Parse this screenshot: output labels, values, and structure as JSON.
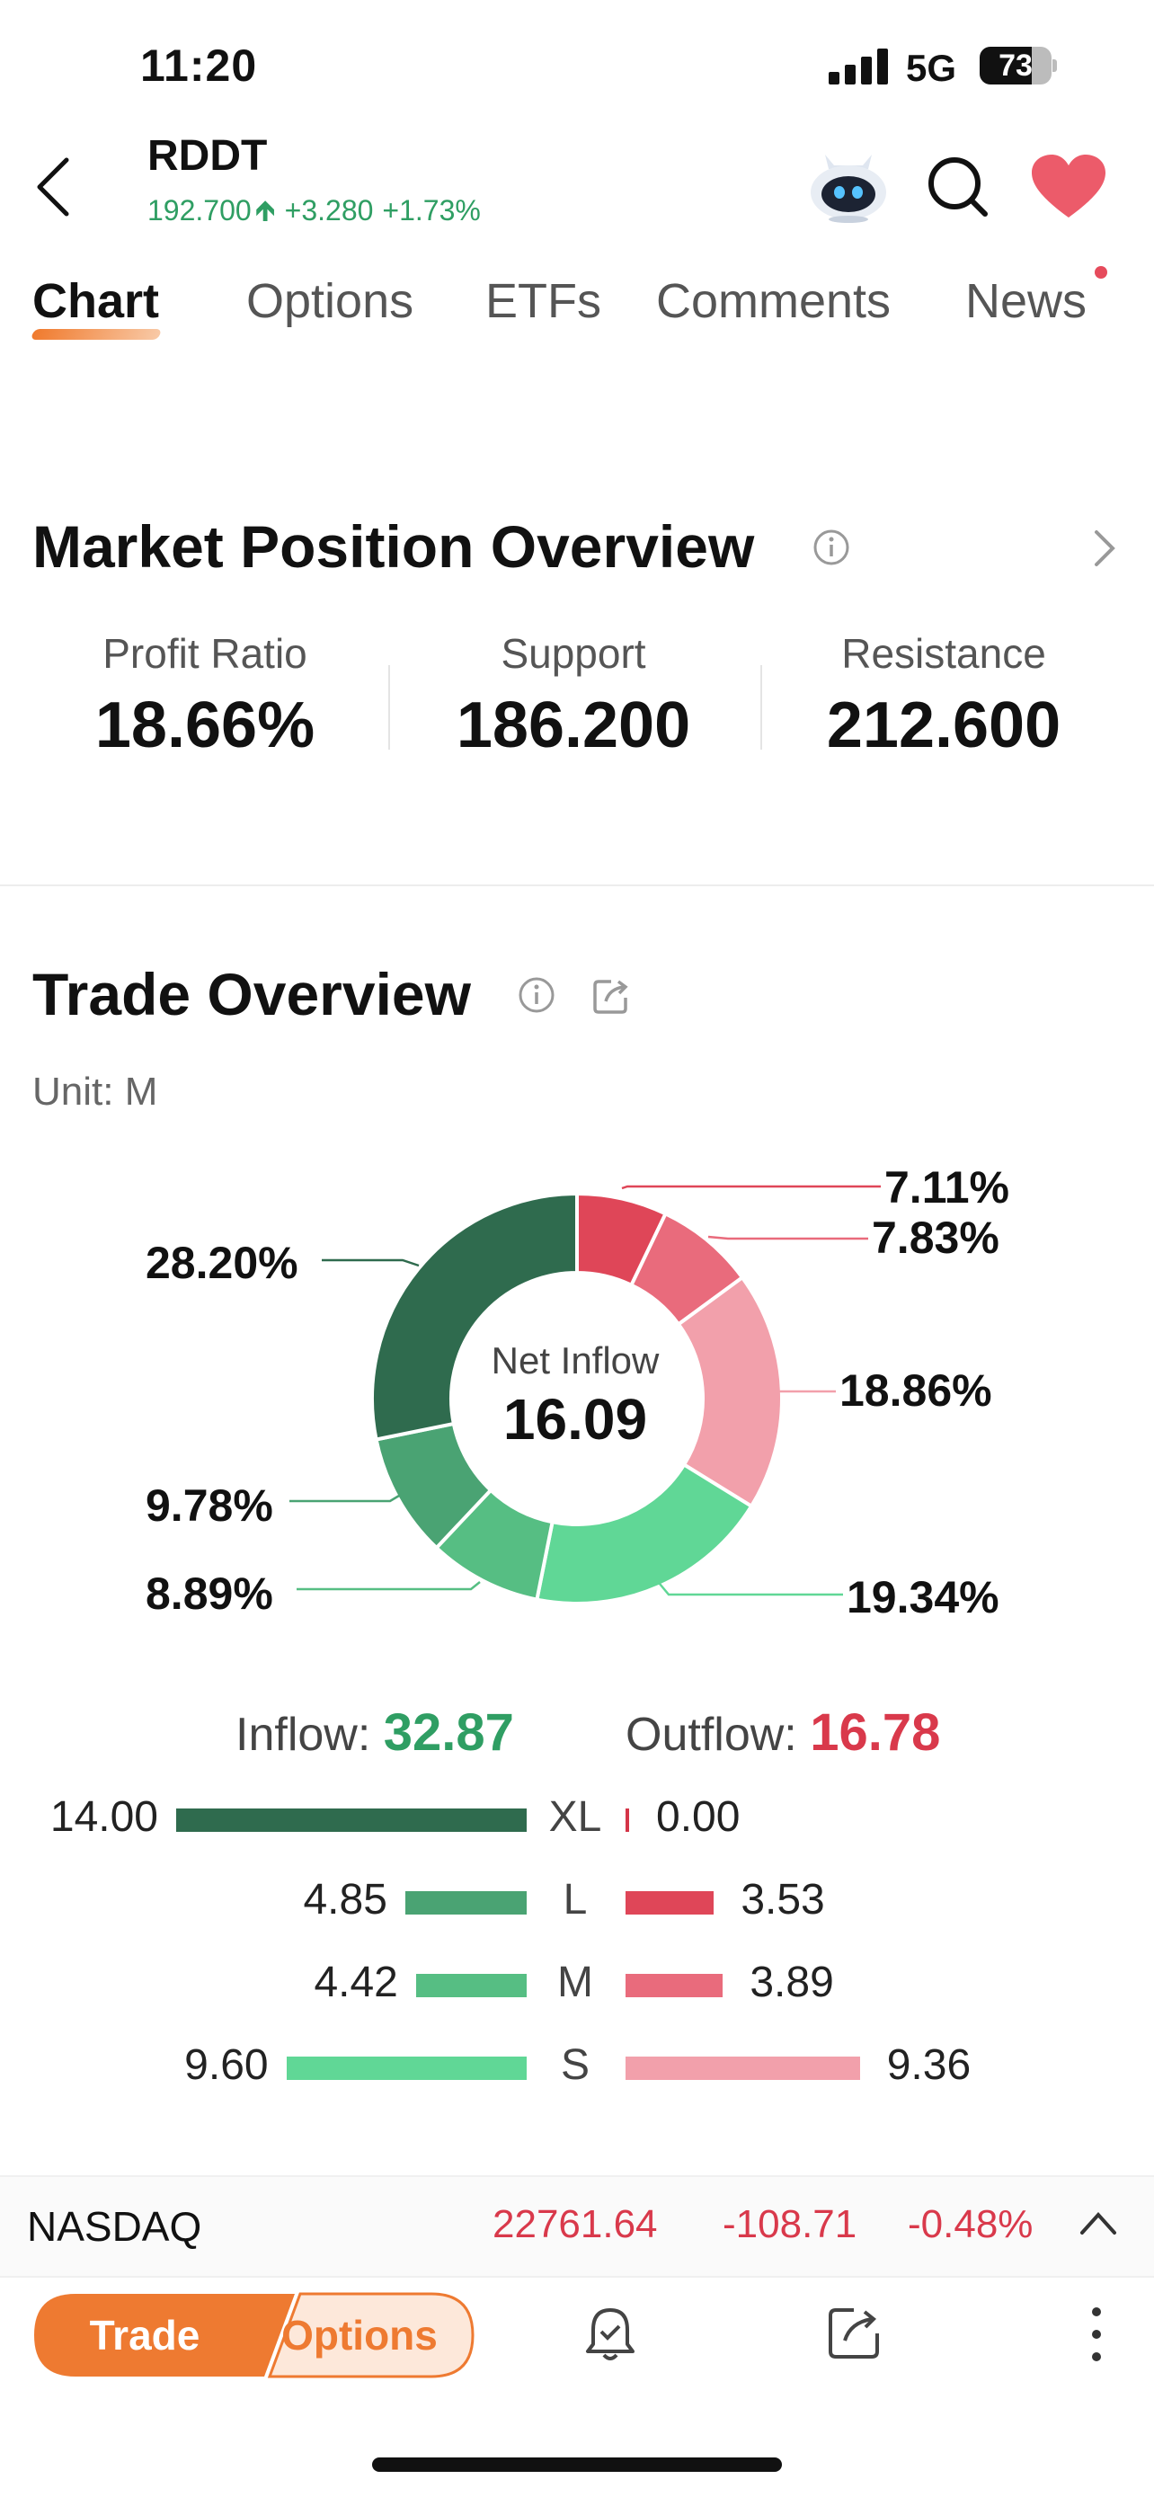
{
  "status": {
    "time": "11:20",
    "network": "5G",
    "battery": "73",
    "battery_level": 0.73
  },
  "header": {
    "ticker": "RDDT",
    "price": "192.700",
    "change": "+3.280",
    "change_pct": "+1.73%",
    "up_color": "#2f9e63"
  },
  "tabs": [
    {
      "label": "Chart",
      "active": true
    },
    {
      "label": "Options",
      "active": false
    },
    {
      "label": "ETFs",
      "active": false
    },
    {
      "label": "Comments",
      "active": false
    },
    {
      "label": "News",
      "active": false
    }
  ],
  "market_position": {
    "title": "Market Position Overview",
    "stats": [
      {
        "label": "Profit Ratio",
        "value": "18.66%"
      },
      {
        "label": "Support",
        "value": "186.200"
      },
      {
        "label": "Resistance",
        "value": "212.600"
      }
    ]
  },
  "trade_overview": {
    "title": "Trade Overview",
    "unit": "Unit: M",
    "center_label": "Net Inflow",
    "center_value": "16.09",
    "inflow_label": "Inflow:",
    "inflow_value": "32.87",
    "outflow_label": "Outflow:",
    "outflow_value": "16.78",
    "rows": [
      {
        "cat": "XL",
        "in": "14.00",
        "out": "0.00"
      },
      {
        "cat": "L",
        "in": "4.85",
        "out": "3.53"
      },
      {
        "cat": "M",
        "in": "4.42",
        "out": "3.89"
      },
      {
        "cat": "S",
        "in": "9.60",
        "out": "9.36"
      }
    ]
  },
  "chart_data": {
    "type": "pie",
    "categories": [
      "Outflow XL",
      "Outflow L",
      "Outflow M",
      "Outflow S",
      "Inflow S",
      "Inflow M",
      "Inflow L",
      "Inflow XL"
    ],
    "values": [
      0.0,
      7.11,
      7.83,
      18.86,
      19.34,
      8.89,
      9.78,
      28.2
    ],
    "labels": [
      "",
      "7.11%",
      "7.83%",
      "18.86%",
      "19.34%",
      "8.89%",
      "9.78%",
      "28.20%"
    ],
    "colors": [
      "#d43548",
      "#df4658",
      "#e96b7c",
      "#f2a0ab",
      "#60d796",
      "#56be83",
      "#4aa373",
      "#2f6b4e"
    ]
  },
  "index_bar": {
    "name": "NASDAQ",
    "price": "22761.64",
    "change": "-108.71",
    "change_pct": "-0.48%"
  },
  "toolbar": {
    "trade_label": "Trade",
    "options_label": "Options"
  },
  "colors": {
    "accent": "#ee7a31",
    "down": "#d9394b",
    "up": "#2f9e63"
  }
}
